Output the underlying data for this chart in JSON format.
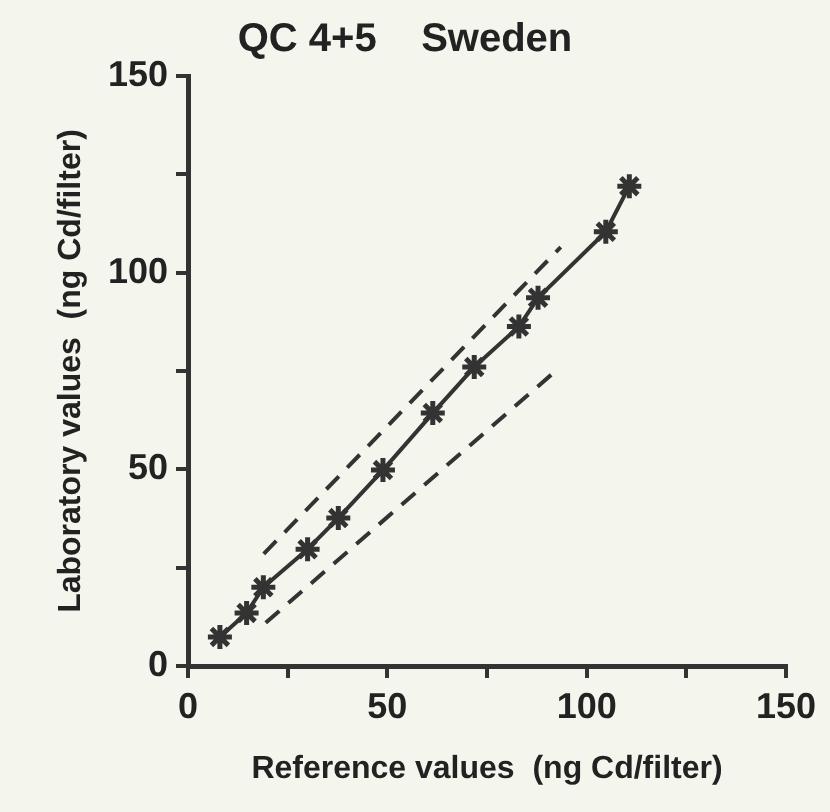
{
  "chart_data": {
    "type": "line",
    "title": "QC 4+5    Sweden",
    "xlabel": "Reference values  (ng Cd/filter)",
    "ylabel": "Laboratory values  (ng Cd/filter)",
    "xlim": [
      0,
      150
    ],
    "ylim": [
      0,
      150
    ],
    "xticks": [
      0,
      {
        "value": 25,
        "label": null
      },
      50,
      {
        "value": 75,
        "label": null
      },
      100,
      {
        "value": 125,
        "label": null
      },
      150
    ],
    "yticks": [
      0,
      {
        "value": 25,
        "label": null
      },
      50,
      {
        "value": 75,
        "label": null
      },
      100,
      {
        "value": 125,
        "label": null
      },
      150
    ],
    "grid": false,
    "legend": false,
    "x": [
      8,
      14.7,
      18.9,
      30,
      37.7,
      48.9,
      61.4,
      71.8,
      83,
      87.8,
      104.8,
      110.7
    ],
    "series": [
      {
        "type": "line",
        "color": "#333333",
        "marker": "cross",
        "line_style": "solid",
        "values": [
          7.4,
          13.5,
          20,
          29.7,
          37.6,
          49.8,
          64.3,
          76,
          86.3,
          93.6,
          110.4,
          122
        ]
      },
      {
        "type": "line",
        "color": "#333333",
        "marker": "none",
        "line_style": "dashed",
        "x": [
          19,
          93.5
        ],
        "values": [
          28.5,
          106.5
        ]
      },
      {
        "type": "line",
        "color": "#333333",
        "marker": "none",
        "line_style": "dashed",
        "x": [
          19.5,
          93
        ],
        "values": [
          11,
          75.7
        ]
      }
    ]
  }
}
